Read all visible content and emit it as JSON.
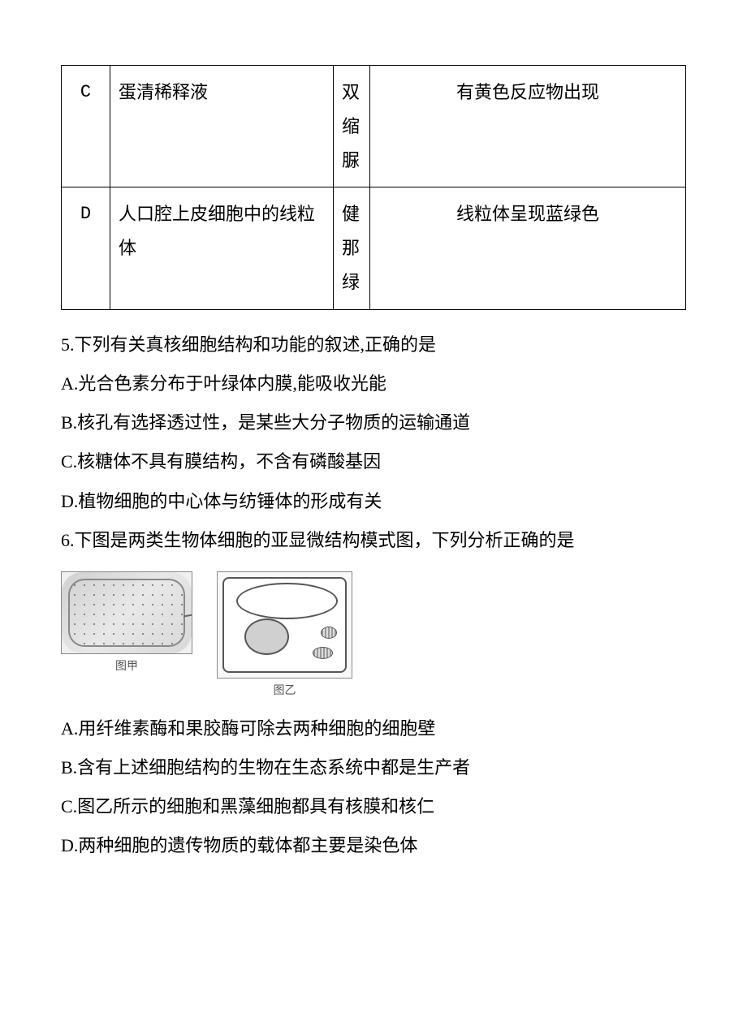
{
  "table": {
    "rows": [
      {
        "letter": "C",
        "material": "蛋清稀释液",
        "reagent": "双缩脲",
        "result": "有黄色反应物出现"
      },
      {
        "letter": "D",
        "material": "人口腔上皮细胞中的线粒体",
        "reagent": "健那绿",
        "result": "线粒体呈现蓝绿色"
      }
    ]
  },
  "question5": {
    "stem": "5.下列有关真核细胞结构和功能的叙述,正确的是",
    "optionA": "A.光合色素分布于叶绿体内膜,能吸收光能",
    "optionB": "B.核孔有选择透过性，是某些大分子物质的运输通道",
    "optionC": "C.核糖体不具有膜结构，不含有磷酸基因",
    "optionD": "D.植物细胞的中心体与纺锤体的形成有关"
  },
  "question6": {
    "stem": "6.下图是两类生物体细胞的亚显微结构模式图，下列分析正确的是",
    "figure_jia_label": "图甲",
    "figure_yi_label": "图乙",
    "optionA": "A.用纤维素酶和果胶酶可除去两种细胞的细胞壁",
    "optionB": "B.含有上述细胞结构的生物在生态系统中都是生产者",
    "optionC": "C.图乙所示的细胞和黑藻细胞都具有核膜和核仁",
    "optionD": "D.两种细胞的遗传物质的载体都主要是染色体"
  }
}
